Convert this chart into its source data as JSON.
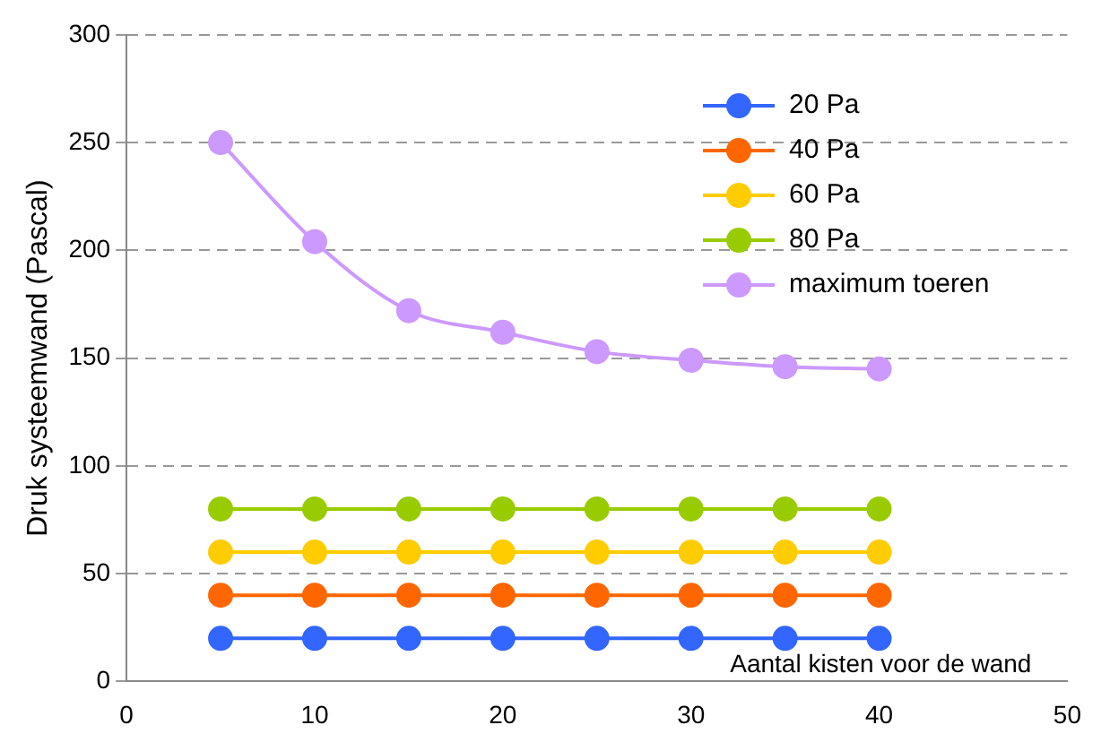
{
  "chart_data": {
    "type": "line",
    "xlabel": "Aantal kisten voor de wand",
    "ylabel": "Druk systeemwand (Pascal)",
    "x": [
      5,
      10,
      15,
      20,
      25,
      30,
      35,
      40
    ],
    "series": [
      {
        "name": "20 Pa",
        "color": "#3366ff",
        "values": [
          20,
          20,
          20,
          20,
          20,
          20,
          20,
          20
        ]
      },
      {
        "name": "40 Pa",
        "color": "#ff6600",
        "values": [
          40,
          40,
          40,
          40,
          40,
          40,
          40,
          40
        ]
      },
      {
        "name": "60 Pa",
        "color": "#ffcc00",
        "values": [
          60,
          60,
          60,
          60,
          60,
          60,
          60,
          60
        ]
      },
      {
        "name": "80 Pa",
        "color": "#99cc00",
        "values": [
          80,
          80,
          80,
          80,
          80,
          80,
          80,
          80
        ]
      },
      {
        "name": "maximum toeren",
        "color": "#cc99ff",
        "values": [
          250,
          204,
          172,
          162,
          153,
          149,
          146,
          145
        ]
      }
    ],
    "xlim": [
      0,
      50
    ],
    "xticks": [
      0,
      10,
      20,
      30,
      40,
      50
    ],
    "ylim": [
      0,
      300
    ],
    "yticks": [
      0,
      50,
      100,
      150,
      200,
      250,
      300
    ],
    "grid": "y",
    "legend": "top right",
    "marker": "circle",
    "line_style": "solid"
  }
}
